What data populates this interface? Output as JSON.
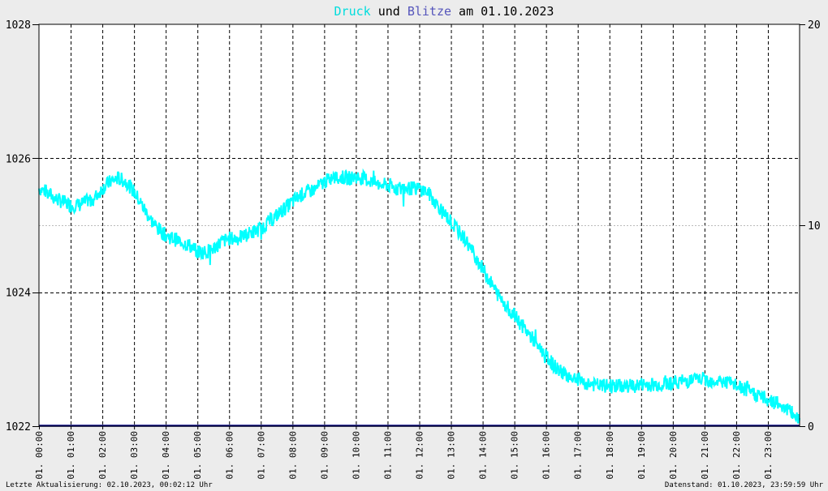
{
  "title": {
    "part1": "Druck",
    "part2": " und ",
    "part3": "Blitze",
    "part4": " am 01.10.2023"
  },
  "footer": {
    "left": "Letzte Aktualisierung: 02.10.2023, 00:02:12 Uhr",
    "right": "Datenstand: 01.10.2023, 23:59:59 Uhr"
  },
  "colors": {
    "pressure": "#00ffff",
    "lightning": "#000080",
    "title_druck": "#00dddd",
    "title_blitze": "#5555bb",
    "background": "#ececec",
    "plot_bg": "#ffffff",
    "grid": "#000000"
  },
  "chart_data": {
    "type": "line",
    "x_ticks": [
      "01. 00:00",
      "01. 01:00",
      "01. 02:00",
      "01. 03:00",
      "01. 04:00",
      "01. 05:00",
      "01. 06:00",
      "01. 07:00",
      "01. 08:00",
      "01. 09:00",
      "01. 10:00",
      "01. 11:00",
      "01. 12:00",
      "01. 13:00",
      "01. 14:00",
      "01. 15:00",
      "01. 16:00",
      "01. 17:00",
      "01. 18:00",
      "01. 19:00",
      "01. 20:00",
      "01. 21:00",
      "01. 22:00",
      "01. 23:00"
    ],
    "xlim_hours": [
      0,
      24
    ],
    "y_left": {
      "ticks": [
        "1028",
        "1026",
        "1024",
        "1022"
      ],
      "min": 1022,
      "max": 1028
    },
    "y_right": {
      "ticks": [
        "20",
        "10",
        "0"
      ],
      "min": 0,
      "max": 20
    },
    "series": [
      {
        "name": "Druck",
        "axis": "left",
        "x_hours": [
          0,
          0.25,
          0.5,
          0.75,
          1,
          1.25,
          1.5,
          1.75,
          2,
          2.25,
          2.5,
          2.75,
          3,
          3.25,
          3.5,
          3.75,
          4,
          4.25,
          4.5,
          4.75,
          5,
          5.25,
          5.5,
          5.75,
          6,
          6.25,
          6.5,
          6.75,
          7,
          7.25,
          7.5,
          7.75,
          8,
          8.25,
          8.5,
          8.75,
          9,
          9.25,
          9.5,
          9.75,
          10,
          10.25,
          10.5,
          10.75,
          11,
          11.25,
          11.5,
          11.75,
          12,
          12.25,
          12.5,
          12.75,
          13,
          13.25,
          13.5,
          13.75,
          14,
          14.25,
          14.5,
          14.75,
          15,
          15.25,
          15.5,
          15.75,
          16,
          16.25,
          16.5,
          16.75,
          17,
          17.25,
          17.5,
          17.75,
          18,
          18.25,
          18.5,
          18.75,
          19,
          19.25,
          19.5,
          19.75,
          20,
          20.25,
          20.5,
          20.75,
          21,
          21.25,
          21.5,
          21.75,
          22,
          22.25,
          22.5,
          22.75,
          23,
          23.25,
          23.5,
          23.75,
          24
        ],
        "values": [
          1025.55,
          1025.5,
          1025.4,
          1025.35,
          1025.3,
          1025.3,
          1025.35,
          1025.4,
          1025.55,
          1025.65,
          1025.7,
          1025.65,
          1025.5,
          1025.3,
          1025.1,
          1024.95,
          1024.85,
          1024.8,
          1024.75,
          1024.7,
          1024.6,
          1024.6,
          1024.65,
          1024.75,
          1024.8,
          1024.8,
          1024.85,
          1024.9,
          1024.95,
          1025.05,
          1025.15,
          1025.25,
          1025.35,
          1025.45,
          1025.5,
          1025.55,
          1025.65,
          1025.7,
          1025.72,
          1025.7,
          1025.72,
          1025.7,
          1025.65,
          1025.6,
          1025.6,
          1025.55,
          1025.55,
          1025.55,
          1025.55,
          1025.5,
          1025.35,
          1025.2,
          1025.05,
          1024.9,
          1024.75,
          1024.55,
          1024.35,
          1024.15,
          1023.95,
          1023.8,
          1023.65,
          1023.5,
          1023.35,
          1023.2,
          1023.05,
          1022.9,
          1022.8,
          1022.75,
          1022.7,
          1022.65,
          1022.62,
          1022.6,
          1022.6,
          1022.6,
          1022.6,
          1022.6,
          1022.62,
          1022.62,
          1022.62,
          1022.65,
          1022.65,
          1022.67,
          1022.68,
          1022.7,
          1022.7,
          1022.68,
          1022.67,
          1022.65,
          1022.6,
          1022.55,
          1022.5,
          1022.45,
          1022.4,
          1022.35,
          1022.3,
          1022.2,
          1022.1
        ]
      },
      {
        "name": "Blitze",
        "axis": "right",
        "x_hours": [
          0,
          24
        ],
        "values": [
          0,
          0
        ]
      }
    ]
  }
}
